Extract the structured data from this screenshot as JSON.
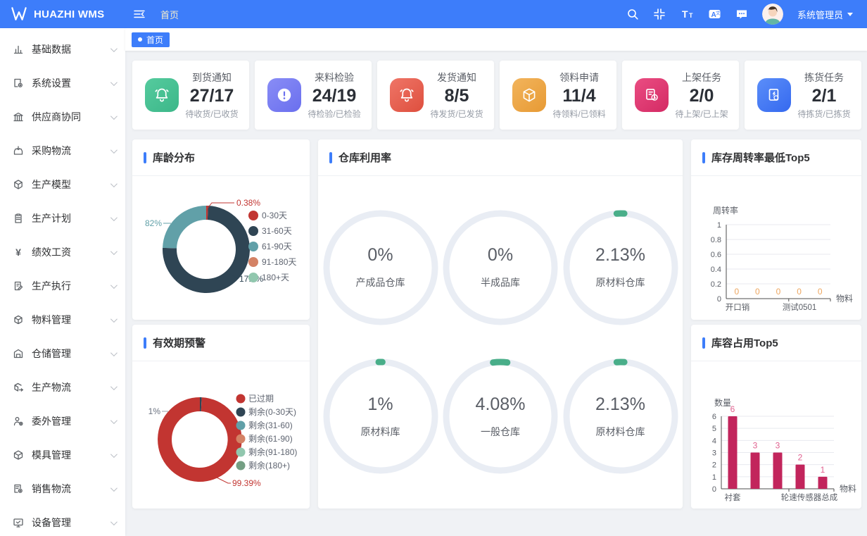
{
  "theme": {
    "header_bg": "#3d7dfa",
    "accent": "#3d7dfa",
    "page_bg": "#f0f2f5"
  },
  "header": {
    "logo_text": "HUAZHI WMS",
    "breadcrumb": "首页",
    "username": "系统管理员",
    "icons": [
      "collapse-menu",
      "search",
      "exit-fullscreen",
      "font-size",
      "translate",
      "message"
    ]
  },
  "tabbar": {
    "active_tab": "首页"
  },
  "sidebar": {
    "items": [
      {
        "label": "基础数据",
        "icon": "bar-chart"
      },
      {
        "label": "系统设置",
        "icon": "doc-gear"
      },
      {
        "label": "供应商协同",
        "icon": "bank"
      },
      {
        "label": "采购物流",
        "icon": "box-arrow-in"
      },
      {
        "label": "生产模型",
        "icon": "cube"
      },
      {
        "label": "生产计划",
        "icon": "clipboard"
      },
      {
        "label": "绩效工资",
        "icon": "yen"
      },
      {
        "label": "生产执行",
        "icon": "doc-edit"
      },
      {
        "label": "物料管理",
        "icon": "cube"
      },
      {
        "label": "仓储管理",
        "icon": "warehouse"
      },
      {
        "label": "生产物流",
        "icon": "cube-arrow"
      },
      {
        "label": "委外管理",
        "icon": "person-gear"
      },
      {
        "label": "模具管理",
        "icon": "box-diamond"
      },
      {
        "label": "销售物流",
        "icon": "doc-gear"
      },
      {
        "label": "设备管理",
        "icon": "monitor-check"
      }
    ]
  },
  "stats": [
    {
      "title": "到货通知",
      "value": "27/17",
      "sub": "待收货/已收货",
      "icon": "bell",
      "color1": "#55cb9e",
      "color2": "#3cb789"
    },
    {
      "title": "来料检验",
      "value": "24/19",
      "sub": "待检验/已检验",
      "icon": "alert-circle",
      "color1": "#898df6",
      "color2": "#6a6fee"
    },
    {
      "title": "发货通知",
      "value": "8/5",
      "sub": "待发货/已发货",
      "icon": "bell",
      "color1": "#ef7567",
      "color2": "#de4f3e"
    },
    {
      "title": "领料申请",
      "value": "11/4",
      "sub": "待领料/已领料",
      "icon": "cube",
      "color1": "#f2b45c",
      "color2": "#e79a34"
    },
    {
      "title": "上架任务",
      "value": "2/0",
      "sub": "待上架/已上架",
      "icon": "doc-clock",
      "color1": "#ea4d82",
      "color2": "#d42a64"
    },
    {
      "title": "拣货任务",
      "value": "2/1",
      "sub": "待拣货/已拣货",
      "icon": "doc-bolt",
      "color1": "#5b8ef9",
      "color2": "#3569ef"
    }
  ],
  "panels": {
    "age_title": "库龄分布",
    "usage_title": "仓库利用率",
    "turnover_title": "库存周转率最低Top5",
    "expiry_title": "有效期预警",
    "capacity_title": "库容占用Top5"
  },
  "chart_data": [
    {
      "type": "pie",
      "title": "库龄分布",
      "legend_position": "right",
      "items": [
        {
          "name": "0-30天",
          "color": "#c23531",
          "label": "0.38%"
        },
        {
          "name": "31-60天",
          "color": "#2f4554",
          "label": "17.8%"
        },
        {
          "name": "61-90天",
          "color": "#61a0a8",
          "label": "82%"
        },
        {
          "name": "91-180天",
          "color": "#d48265",
          "label": ""
        },
        {
          "name": "180+天",
          "color": "#91c7ae",
          "label": ""
        }
      ]
    },
    {
      "type": "gauge",
      "title": "仓库利用率",
      "unit": "%",
      "arc_color": "#49ae89",
      "track_color": "#e9edf4",
      "items": [
        {
          "label": "产成品仓库",
          "value": 0,
          "display": "0%"
        },
        {
          "label": "半成品库",
          "value": 0,
          "display": "0%"
        },
        {
          "label": "原材料仓库",
          "value": 2.13,
          "display": "2.13%"
        },
        {
          "label": "原材料库",
          "value": 1,
          "display": "1%"
        },
        {
          "label": "一般仓库",
          "value": 4.08,
          "display": "4.08%"
        },
        {
          "label": "原材料仓库",
          "value": 2.13,
          "display": "2.13%"
        }
      ]
    },
    {
      "type": "bar",
      "title": "库存周转率最低Top5",
      "ylabel": "周转率",
      "xlabel": "物料",
      "categories": [
        "开口销",
        "",
        "",
        "测试0501",
        ""
      ],
      "values": [
        0,
        0,
        0,
        0,
        0
      ],
      "yticks": [
        0,
        0.2,
        0.4,
        0.6,
        0.8,
        1
      ],
      "ylim": [
        0,
        1
      ],
      "grid": true,
      "bar_color": "#c2255c",
      "value_label_color": "#eda65f"
    },
    {
      "type": "pie",
      "title": "有效期预警",
      "legend_position": "right",
      "items": [
        {
          "name": "已过期",
          "color": "#c23531",
          "label": "99.39%"
        },
        {
          "name": "剩余(0-30天)",
          "color": "#2f4554",
          "label": "1%"
        },
        {
          "name": "剩余(31-60)",
          "color": "#61a0a8",
          "label": ""
        },
        {
          "name": "剩余(61-90)",
          "color": "#d48265",
          "label": ""
        },
        {
          "name": "剩余(91-180)",
          "color": "#91c7ae",
          "label": ""
        },
        {
          "name": "剩余(180+)",
          "color": "#749f83",
          "label": ""
        }
      ]
    },
    {
      "type": "bar",
      "title": "库容占用Top5",
      "ylabel": "数量",
      "xlabel": "物料",
      "categories": [
        "衬套",
        "",
        "",
        "轮速传感器总成",
        ""
      ],
      "values": [
        6,
        3,
        3,
        2,
        1
      ],
      "yticks": [
        0,
        1,
        2,
        3,
        4,
        5,
        6
      ],
      "ylim": [
        0,
        6
      ],
      "grid": true,
      "bar_color": "#c2255c",
      "value_label_color": "#e0618f"
    }
  ]
}
